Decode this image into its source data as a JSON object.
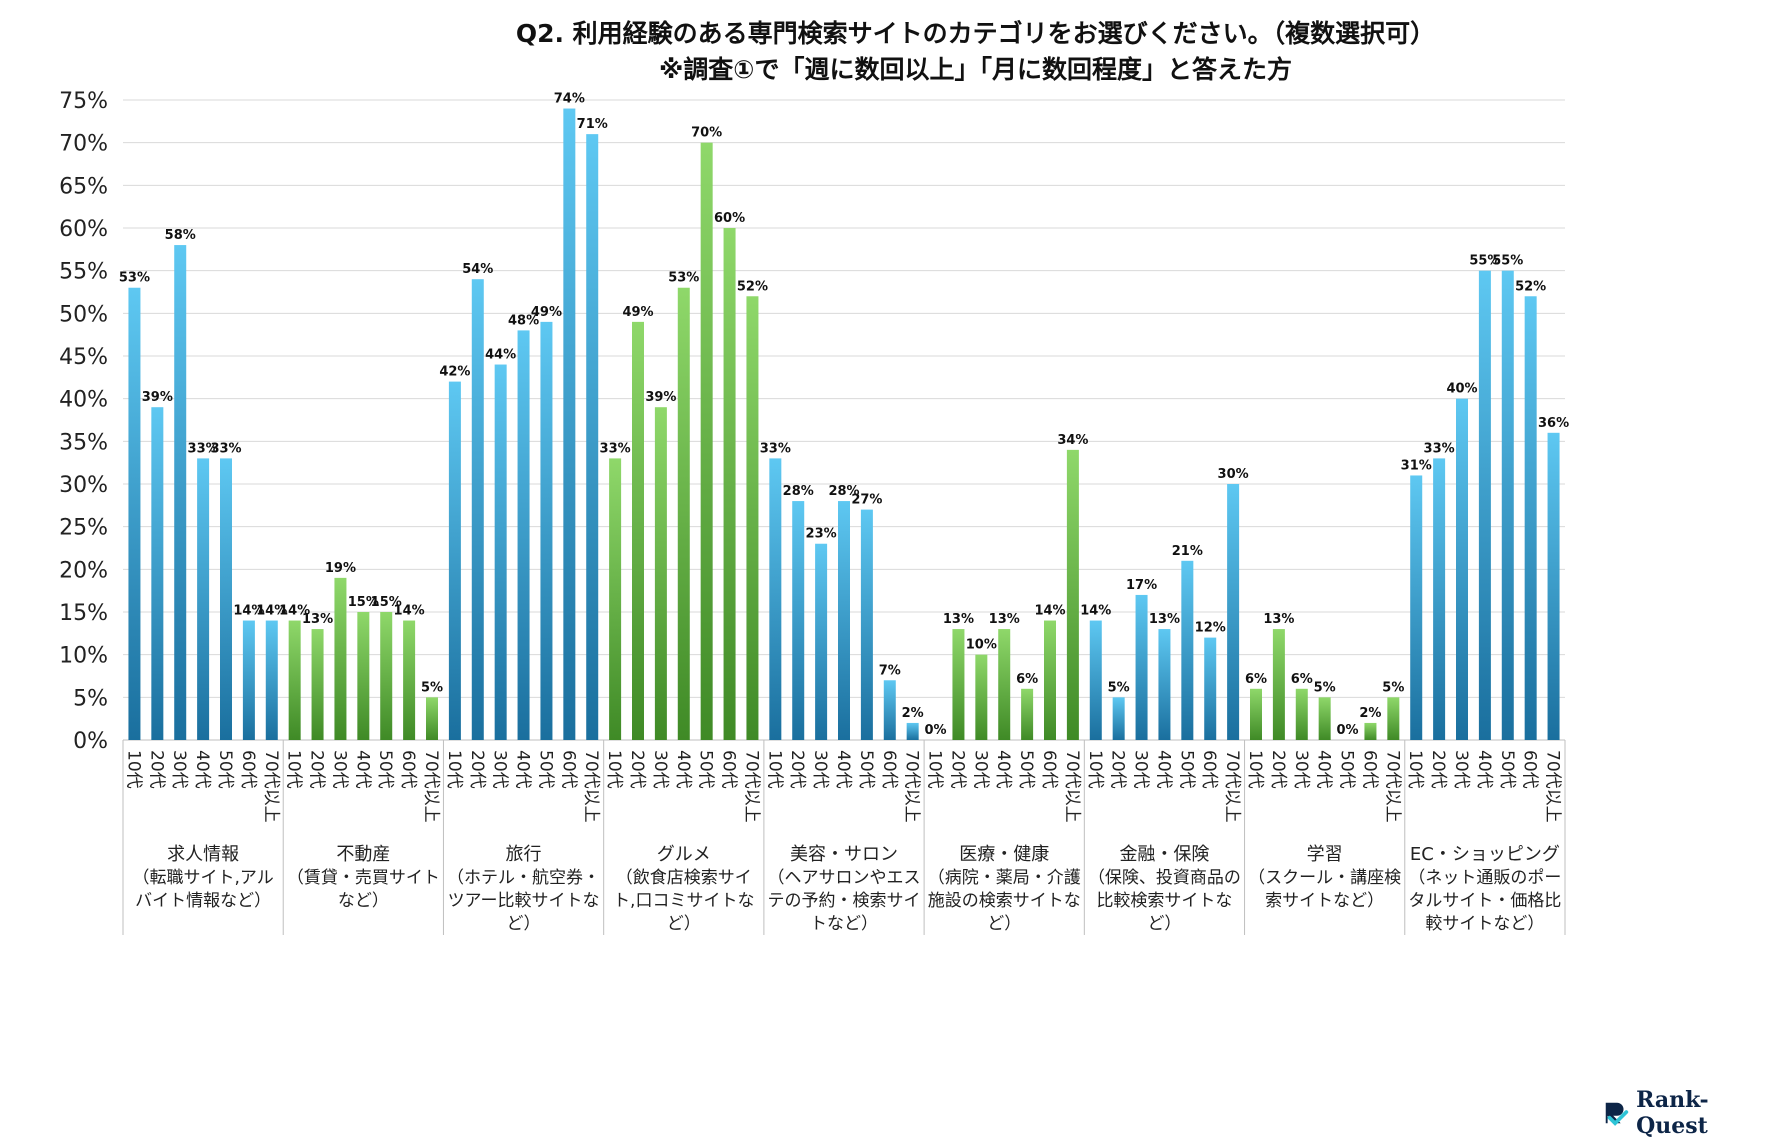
{
  "chart_data": {
    "type": "bar",
    "title": "Q2. 利用経験のある専門検索サイトのカテゴリをお選びください。（複数選択可）",
    "subtitle": "※調査①で「週に数回以上」「月に数回程度」と答えた方",
    "ylim": [
      0,
      75
    ],
    "yticks": [
      "0%",
      "5%",
      "10%",
      "15%",
      "20%",
      "25%",
      "30%",
      "35%",
      "40%",
      "45%",
      "50%",
      "55%",
      "60%",
      "65%",
      "70%",
      "75%"
    ],
    "grid": true,
    "age_labels": [
      "10代",
      "20代",
      "30代",
      "40代",
      "50代",
      "60代",
      "70代以上"
    ],
    "groups": [
      {
        "name": "求人情報",
        "desc": [
          "（転職サイト,アル",
          "バイト情報など）"
        ],
        "color": "blue",
        "values": [
          53,
          39,
          58,
          33,
          33,
          14,
          14
        ],
        "labels": [
          "53%",
          "39%",
          "58%",
          "33%",
          "33%",
          "14%",
          "14%"
        ]
      },
      {
        "name": "不動産",
        "desc": [
          "（賃貸・売買サイト",
          "など）"
        ],
        "color": "green",
        "values": [
          14,
          13,
          19,
          15,
          15,
          14,
          5
        ],
        "labels": [
          "14%",
          "13%",
          "19%",
          "15%",
          "15%",
          "14%",
          "5%"
        ]
      },
      {
        "name": "旅行",
        "desc": [
          "（ホテル・航空券・",
          "ツアー比較サイトな",
          "ど）"
        ],
        "color": "blue",
        "values": [
          42,
          54,
          44,
          48,
          49,
          74,
          71
        ],
        "labels": [
          "42%",
          "54%",
          "44%",
          "48%",
          "49%",
          "74%",
          "71%"
        ]
      },
      {
        "name": "グルメ",
        "desc": [
          "（飲食店検索サイ",
          "ト,口コミサイトな",
          "ど）"
        ],
        "color": "green",
        "values": [
          33,
          49,
          39,
          53,
          70,
          60,
          52
        ],
        "labels": [
          "33%",
          "49%",
          "39%",
          "53%",
          "70%",
          "60%",
          "52%"
        ]
      },
      {
        "name": "美容・サロン",
        "desc": [
          "（ヘアサロンやエス",
          "テの予約・検索サイ",
          "トなど）"
        ],
        "color": "blue",
        "values": [
          33,
          28,
          23,
          28,
          27,
          7,
          2
        ],
        "labels": [
          "33%",
          "28%",
          "23%",
          "28%",
          "27%",
          "7%",
          "2%"
        ]
      },
      {
        "name": "医療・健康",
        "desc": [
          "（病院・薬局・介護",
          "施設の検索サイトな",
          "ど）"
        ],
        "color": "green",
        "values": [
          0,
          13,
          10,
          13,
          6,
          14,
          34
        ],
        "labels": [
          "0%",
          "13%",
          "10%",
          "13%",
          "6%",
          "14%",
          "34%"
        ]
      },
      {
        "name": "金融・保険",
        "desc": [
          "（保険、投資商品の",
          "比較検索サイトな",
          "ど）"
        ],
        "color": "blue",
        "values": [
          14,
          5,
          17,
          13,
          21,
          12,
          30
        ],
        "labels": [
          "14%",
          "5%",
          "17%",
          "13%",
          "21%",
          "12%",
          "30%"
        ]
      },
      {
        "name": "学習",
        "desc": [
          "（スクール・講座検",
          "索サイトなど）"
        ],
        "color": "green",
        "values": [
          6,
          13,
          6,
          5,
          0,
          2,
          5
        ],
        "labels": [
          "6%",
          "13%",
          "6%",
          "5%",
          "0%",
          "2%",
          "5%"
        ]
      },
      {
        "name": "EC・ショッピング",
        "desc": [
          "（ネット通販のポー",
          "タルサイト・価格比",
          "較サイトなど）"
        ],
        "color": "blue",
        "values": [
          31,
          33,
          40,
          55,
          55,
          52,
          36
        ],
        "labels": [
          "31%",
          "33%",
          "40%",
          "55%",
          "55%",
          "52%",
          "36%"
        ]
      }
    ]
  },
  "colors": {
    "blue_top": "#5ec8f2",
    "blue_bottom": "#1a6f9e",
    "green_top": "#8fd86a",
    "green_bottom": "#3f8a26",
    "grid": "#d9d9d9",
    "axis": "#bfbfbf"
  },
  "logo": {
    "text": "Rank-Quest",
    "icon": "rank-quest-logo-icon"
  }
}
